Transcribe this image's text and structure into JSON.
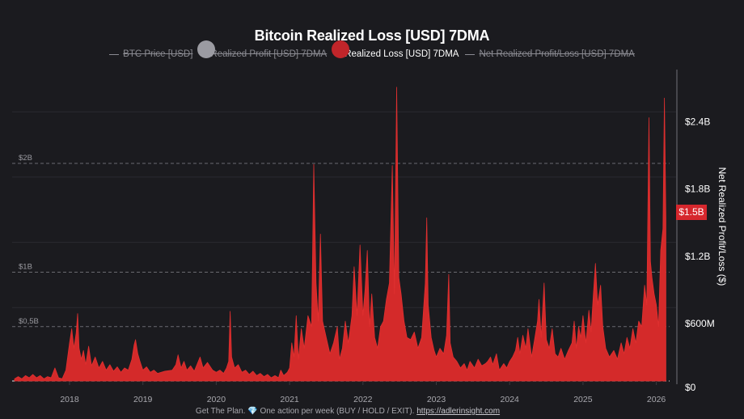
{
  "chart_data": {
    "type": "area",
    "title": "Bitcoin Realized Loss [USD] 7DMA",
    "legend": [
      {
        "label": "BTC Price [USD]",
        "enabled": false,
        "marker": "line"
      },
      {
        "label": "Realized Profit [USD] 7DMA",
        "enabled": false,
        "marker": "dot",
        "color": "#9b9ba2"
      },
      {
        "label": "Realized Loss [USD] 7DMA",
        "enabled": true,
        "marker": "dot",
        "color": "#c0252a"
      },
      {
        "label": "Net Realized Profit/Loss [USD] 7DMA",
        "enabled": false,
        "marker": "line"
      }
    ],
    "legend_position": "top-center",
    "xlabel": "",
    "ylabel": "Net Realized Profit/Loss ($)",
    "x_ticks": [
      "2018",
      "2019",
      "2020",
      "2021",
      "2022",
      "2023",
      "2024",
      "2025",
      "2026"
    ],
    "xlim": [
      2017.25,
      2026.45
    ],
    "right_axis": {
      "ticks": [
        "$0",
        "$600M",
        "$1.2B",
        "$1.8B",
        "$2.4B"
      ],
      "tick_values": [
        0,
        0.6,
        1.2,
        1.8,
        2.4
      ],
      "unit": "billion USD"
    },
    "left_levels": [
      {
        "label": "$2B",
        "value": 2.0
      },
      {
        "label": "$1B",
        "value": 1.0
      },
      {
        "label": "$0,5B",
        "value": 0.5
      }
    ],
    "ylim": [
      0,
      2.75
    ],
    "current_value_label": "$1.5B",
    "current_value": 1.5,
    "series": [
      {
        "name": "Realized Loss [USD] 7DMA",
        "color": "#d42a2a",
        "points": [
          [
            2017.25,
            0.02
          ],
          [
            2017.3,
            0.04
          ],
          [
            2017.35,
            0.02
          ],
          [
            2017.4,
            0.05
          ],
          [
            2017.45,
            0.03
          ],
          [
            2017.5,
            0.06
          ],
          [
            2017.55,
            0.03
          ],
          [
            2017.6,
            0.05
          ],
          [
            2017.65,
            0.02
          ],
          [
            2017.7,
            0.04
          ],
          [
            2017.75,
            0.03
          ],
          [
            2017.8,
            0.12
          ],
          [
            2017.85,
            0.03
          ],
          [
            2017.9,
            0.02
          ],
          [
            2017.95,
            0.1
          ],
          [
            2018.0,
            0.35
          ],
          [
            2018.03,
            0.48
          ],
          [
            2018.06,
            0.3
          ],
          [
            2018.09,
            0.44
          ],
          [
            2018.11,
            0.62
          ],
          [
            2018.13,
            0.3
          ],
          [
            2018.16,
            0.2
          ],
          [
            2018.19,
            0.28
          ],
          [
            2018.22,
            0.15
          ],
          [
            2018.26,
            0.32
          ],
          [
            2018.3,
            0.14
          ],
          [
            2018.35,
            0.22
          ],
          [
            2018.4,
            0.12
          ],
          [
            2018.45,
            0.18
          ],
          [
            2018.5,
            0.1
          ],
          [
            2018.55,
            0.15
          ],
          [
            2018.6,
            0.09
          ],
          [
            2018.65,
            0.13
          ],
          [
            2018.7,
            0.08
          ],
          [
            2018.75,
            0.12
          ],
          [
            2018.8,
            0.1
          ],
          [
            2018.85,
            0.2
          ],
          [
            2018.88,
            0.33
          ],
          [
            2018.9,
            0.38
          ],
          [
            2018.93,
            0.25
          ],
          [
            2018.96,
            0.18
          ],
          [
            2019.0,
            0.1
          ],
          [
            2019.05,
            0.13
          ],
          [
            2019.1,
            0.08
          ],
          [
            2019.15,
            0.1
          ],
          [
            2019.2,
            0.07
          ],
          [
            2019.3,
            0.09
          ],
          [
            2019.4,
            0.1
          ],
          [
            2019.45,
            0.15
          ],
          [
            2019.48,
            0.24
          ],
          [
            2019.52,
            0.12
          ],
          [
            2019.56,
            0.18
          ],
          [
            2019.6,
            0.1
          ],
          [
            2019.65,
            0.14
          ],
          [
            2019.7,
            0.09
          ],
          [
            2019.78,
            0.22
          ],
          [
            2019.82,
            0.12
          ],
          [
            2019.88,
            0.17
          ],
          [
            2019.95,
            0.1
          ],
          [
            2020.0,
            0.08
          ],
          [
            2020.05,
            0.1
          ],
          [
            2020.1,
            0.07
          ],
          [
            2020.14,
            0.12
          ],
          [
            2020.17,
            0.18
          ],
          [
            2020.19,
            0.64
          ],
          [
            2020.21,
            0.22
          ],
          [
            2020.25,
            0.12
          ],
          [
            2020.3,
            0.15
          ],
          [
            2020.35,
            0.08
          ],
          [
            2020.4,
            0.1
          ],
          [
            2020.45,
            0.06
          ],
          [
            2020.5,
            0.09
          ],
          [
            2020.55,
            0.05
          ],
          [
            2020.6,
            0.07
          ],
          [
            2020.65,
            0.04
          ],
          [
            2020.7,
            0.06
          ],
          [
            2020.75,
            0.03
          ],
          [
            2020.8,
            0.05
          ],
          [
            2020.85,
            0.03
          ],
          [
            2020.88,
            0.1
          ],
          [
            2020.92,
            0.05
          ],
          [
            2020.97,
            0.08
          ],
          [
            2021.0,
            0.12
          ],
          [
            2021.03,
            0.35
          ],
          [
            2021.06,
            0.22
          ],
          [
            2021.09,
            0.6
          ],
          [
            2021.12,
            0.2
          ],
          [
            2021.16,
            0.48
          ],
          [
            2021.2,
            0.3
          ],
          [
            2021.25,
            0.6
          ],
          [
            2021.3,
            0.5
          ],
          [
            2021.33,
            1.99
          ],
          [
            2021.36,
            0.9
          ],
          [
            2021.39,
            0.55
          ],
          [
            2021.42,
            1.35
          ],
          [
            2021.45,
            0.55
          ],
          [
            2021.5,
            0.4
          ],
          [
            2021.55,
            0.25
          ],
          [
            2021.6,
            0.35
          ],
          [
            2021.65,
            0.5
          ],
          [
            2021.68,
            0.2
          ],
          [
            2021.72,
            0.3
          ],
          [
            2021.76,
            0.55
          ],
          [
            2021.8,
            0.35
          ],
          [
            2021.85,
            0.6
          ],
          [
            2021.88,
            1.05
          ],
          [
            2021.92,
            0.6
          ],
          [
            2021.96,
            1.25
          ],
          [
            2022.0,
            0.6
          ],
          [
            2022.03,
            0.85
          ],
          [
            2022.06,
            1.2
          ],
          [
            2022.09,
            0.5
          ],
          [
            2022.12,
            0.8
          ],
          [
            2022.16,
            0.4
          ],
          [
            2022.2,
            0.3
          ],
          [
            2022.24,
            0.5
          ],
          [
            2022.28,
            0.55
          ],
          [
            2022.32,
            0.75
          ],
          [
            2022.36,
            0.9
          ],
          [
            2022.4,
            1.98
          ],
          [
            2022.43,
            0.8
          ],
          [
            2022.46,
            2.7
          ],
          [
            2022.49,
            0.95
          ],
          [
            2022.52,
            0.8
          ],
          [
            2022.56,
            0.55
          ],
          [
            2022.6,
            0.4
          ],
          [
            2022.65,
            0.38
          ],
          [
            2022.7,
            0.45
          ],
          [
            2022.75,
            0.3
          ],
          [
            2022.8,
            0.4
          ],
          [
            2022.85,
            0.9
          ],
          [
            2022.87,
            1.5
          ],
          [
            2022.89,
            0.7
          ],
          [
            2022.93,
            0.4
          ],
          [
            2022.97,
            0.28
          ],
          [
            2023.0,
            0.22
          ],
          [
            2023.05,
            0.3
          ],
          [
            2023.1,
            0.25
          ],
          [
            2023.14,
            0.42
          ],
          [
            2023.17,
            0.98
          ],
          [
            2023.19,
            0.35
          ],
          [
            2023.23,
            0.22
          ],
          [
            2023.28,
            0.18
          ],
          [
            2023.33,
            0.12
          ],
          [
            2023.38,
            0.16
          ],
          [
            2023.42,
            0.1
          ],
          [
            2023.46,
            0.18
          ],
          [
            2023.52,
            0.12
          ],
          [
            2023.57,
            0.2
          ],
          [
            2023.62,
            0.14
          ],
          [
            2023.67,
            0.16
          ],
          [
            2023.7,
            0.18
          ],
          [
            2023.74,
            0.22
          ],
          [
            2023.77,
            0.15
          ],
          [
            2023.82,
            0.25
          ],
          [
            2023.86,
            0.1
          ],
          [
            2023.92,
            0.16
          ],
          [
            2023.96,
            0.12
          ],
          [
            2024.0,
            0.18
          ],
          [
            2024.04,
            0.22
          ],
          [
            2024.08,
            0.28
          ],
          [
            2024.11,
            0.4
          ],
          [
            2024.14,
            0.25
          ],
          [
            2024.18,
            0.42
          ],
          [
            2024.22,
            0.3
          ],
          [
            2024.25,
            0.48
          ],
          [
            2024.3,
            0.22
          ],
          [
            2024.34,
            0.38
          ],
          [
            2024.38,
            0.55
          ],
          [
            2024.4,
            0.75
          ],
          [
            2024.43,
            0.4
          ],
          [
            2024.47,
            0.9
          ],
          [
            2024.5,
            0.38
          ],
          [
            2024.54,
            0.3
          ],
          [
            2024.58,
            0.48
          ],
          [
            2024.62,
            0.25
          ],
          [
            2024.66,
            0.22
          ],
          [
            2024.7,
            0.3
          ],
          [
            2024.75,
            0.2
          ],
          [
            2024.8,
            0.28
          ],
          [
            2024.85,
            0.35
          ],
          [
            2024.88,
            0.55
          ],
          [
            2024.91,
            0.3
          ],
          [
            2024.94,
            0.5
          ],
          [
            2024.97,
            0.4
          ],
          [
            2025.0,
            0.6
          ],
          [
            2025.04,
            0.35
          ],
          [
            2025.08,
            0.65
          ],
          [
            2025.11,
            0.45
          ],
          [
            2025.14,
            0.78
          ],
          [
            2025.17,
            1.08
          ],
          [
            2025.2,
            0.7
          ],
          [
            2025.24,
            0.88
          ],
          [
            2025.27,
            0.5
          ],
          [
            2025.31,
            0.3
          ],
          [
            2025.36,
            0.22
          ],
          [
            2025.42,
            0.28
          ],
          [
            2025.47,
            0.2
          ],
          [
            2025.52,
            0.35
          ],
          [
            2025.56,
            0.25
          ],
          [
            2025.6,
            0.4
          ],
          [
            2025.64,
            0.3
          ],
          [
            2025.68,
            0.48
          ],
          [
            2025.72,
            0.35
          ],
          [
            2025.76,
            0.55
          ],
          [
            2025.8,
            0.5
          ],
          [
            2025.84,
            0.88
          ],
          [
            2025.87,
            0.7
          ],
          [
            2025.9,
            2.42
          ],
          [
            2025.92,
            1.1
          ],
          [
            2025.94,
            0.95
          ],
          [
            2025.97,
            0.8
          ],
          [
            2026.0,
            0.7
          ],
          [
            2026.03,
            0.5
          ],
          [
            2026.06,
            1.2
          ],
          [
            2026.09,
            1.4
          ],
          [
            2026.11,
            2.6
          ],
          [
            2026.13,
            1.5
          ]
        ]
      }
    ]
  },
  "footer": {
    "text": "Get The Plan.",
    "gem_icon": "💎",
    "tagline": "One action per week (BUY / HOLD / EXIT).",
    "link_label": "https://adlerinsight.com"
  }
}
